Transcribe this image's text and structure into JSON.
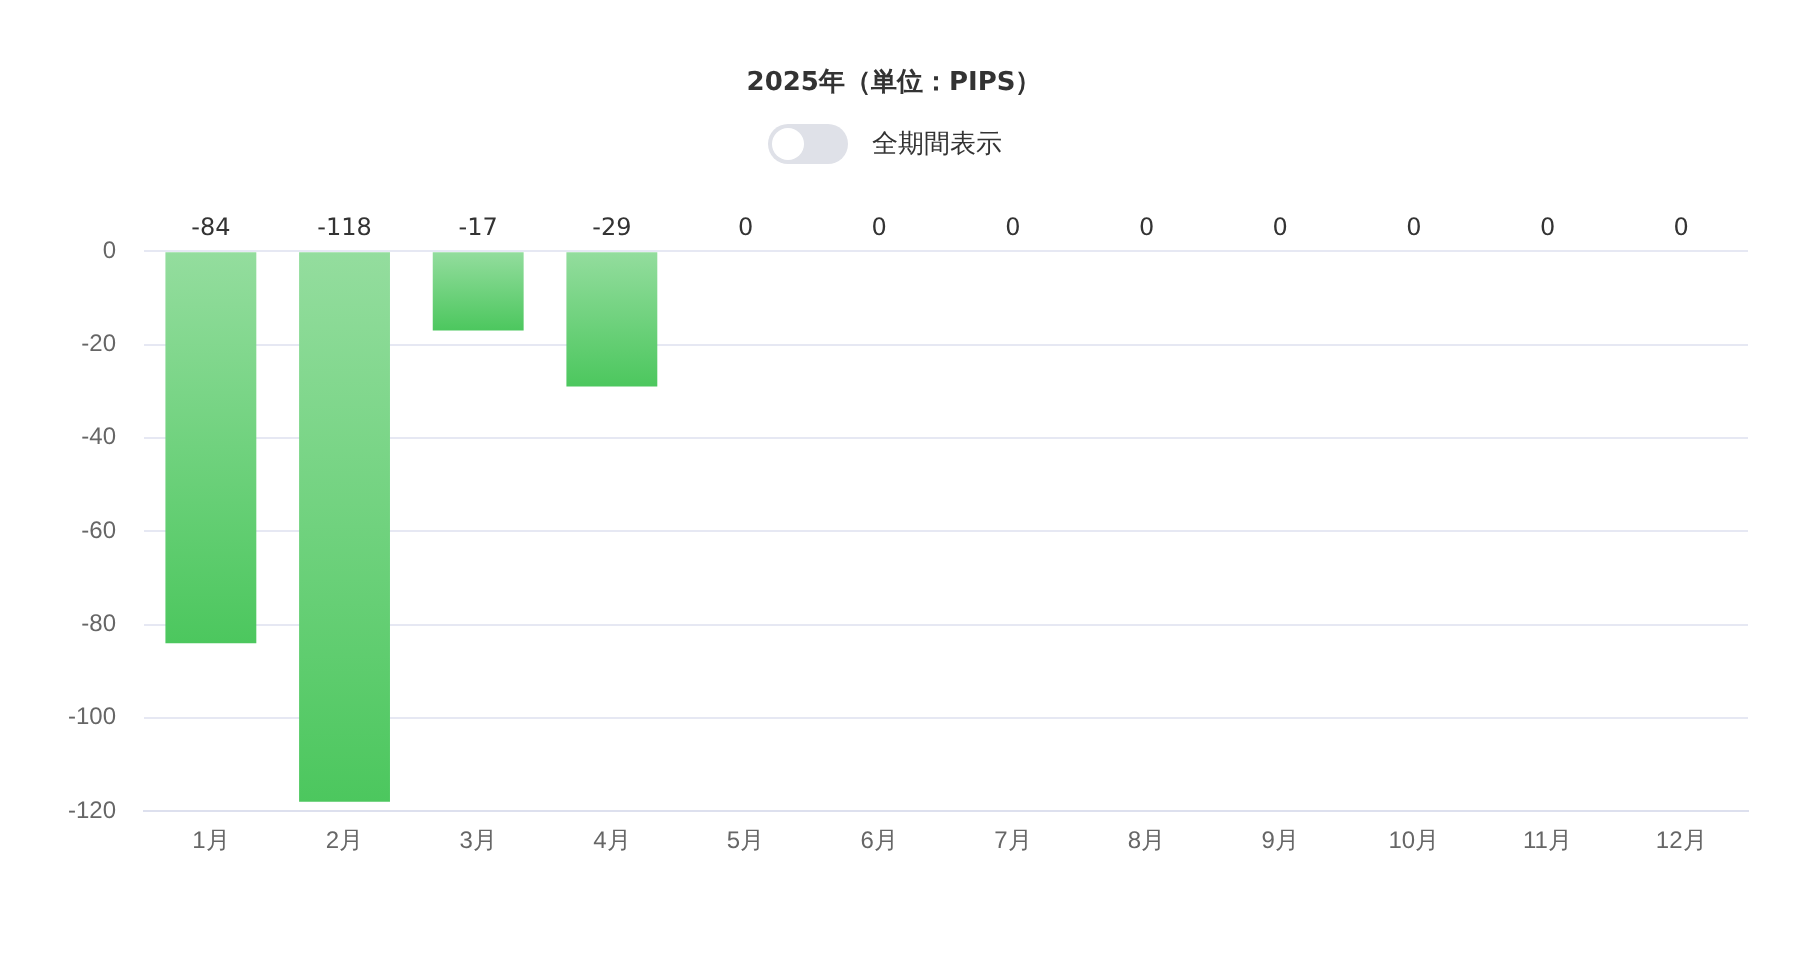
{
  "chart_data": {
    "type": "bar",
    "title": "2025年（単位：PIPS）",
    "categories": [
      "1月",
      "2月",
      "3月",
      "4月",
      "5月",
      "6月",
      "7月",
      "8月",
      "9月",
      "10月",
      "11月",
      "12月"
    ],
    "values": [
      -84,
      -118,
      -17,
      -29,
      0,
      0,
      0,
      0,
      0,
      0,
      0,
      0
    ],
    "color": "#4cc75e",
    "ylim": [
      -120,
      0
    ],
    "yticks": [
      0,
      -20,
      -40,
      -60,
      -80,
      -100,
      -120
    ],
    "grid": "y",
    "data_labels": true,
    "annotations": [
      "全期間表示"
    ]
  }
}
